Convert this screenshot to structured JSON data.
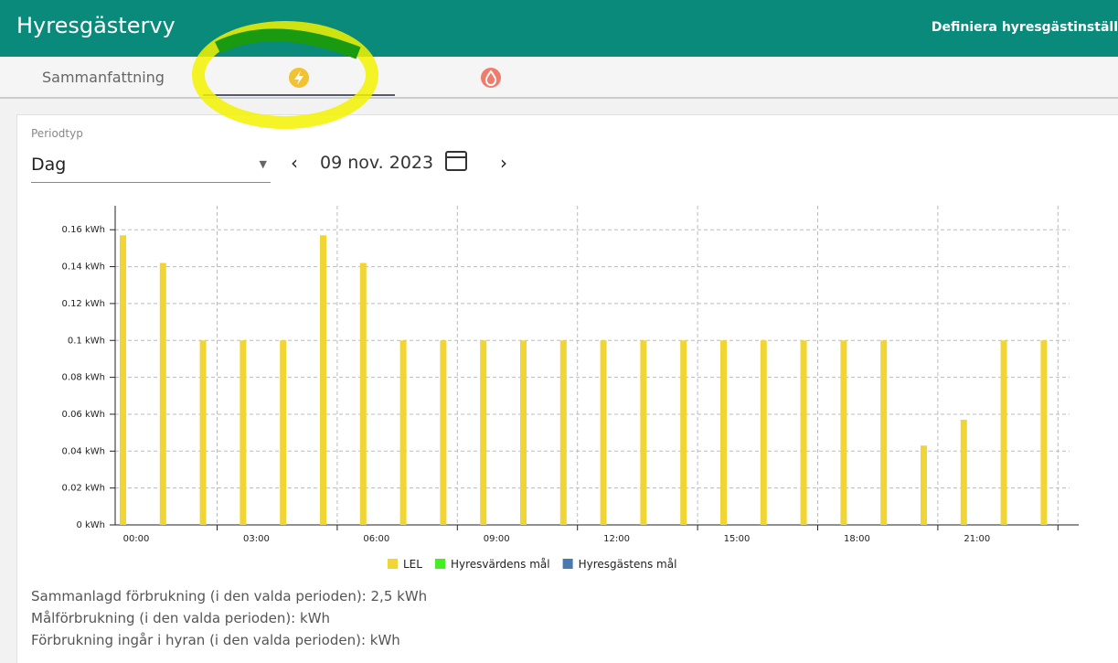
{
  "header": {
    "title": "Hyresgästervy",
    "action": "Definiera hyresgästinställ"
  },
  "tabs": {
    "summary": "Sammanfattning"
  },
  "period": {
    "label": "Periodtyp",
    "type": "Dag",
    "date": "09 nov. 2023"
  },
  "chart_data": {
    "type": "bar",
    "categories": [
      "00:00",
      null,
      null,
      "03:00",
      null,
      null,
      "06:00",
      null,
      null,
      "09:00",
      null,
      null,
      "12:00",
      null,
      null,
      "15:00",
      null,
      null,
      "18:00",
      null,
      null,
      "21:00",
      null,
      null
    ],
    "series": [
      {
        "name": "LEL",
        "color": "#f0d534",
        "values": [
          0.157,
          0.142,
          0.1,
          0.1,
          0.1,
          0.157,
          0.142,
          0.1,
          0.1,
          0.1,
          0.1,
          0.1,
          0.1,
          0.1,
          0.1,
          0.1,
          0.1,
          0.1,
          0.1,
          0.1,
          0.043,
          0.057,
          0.1,
          0.1
        ]
      },
      {
        "name": "Hyresvärdens mål",
        "color": "#44ee22"
      },
      {
        "name": "Hyresgästens mål",
        "color": "#4a78b0"
      }
    ],
    "ylim": [
      0,
      0.173
    ],
    "yticks": [
      {
        "value": 0,
        "label": "0 kWh"
      },
      {
        "value": 0.02,
        "label": "0.02 kWh"
      },
      {
        "value": 0.04,
        "label": "0.04 kWh"
      },
      {
        "value": 0.06,
        "label": "0.06 kWh"
      },
      {
        "value": 0.08,
        "label": "0.08 kWh"
      },
      {
        "value": 0.1,
        "label": "0.1 kWh"
      },
      {
        "value": 0.12,
        "label": "0.12 kWh"
      },
      {
        "value": 0.14,
        "label": "0.14 kWh"
      },
      {
        "value": 0.16,
        "label": "0.16 kWh"
      }
    ],
    "grid": true
  },
  "summary": [
    "Sammanlagd förbrukning (i den valda perioden): 2,5 kWh",
    "Målförbrukning (i den valda perioden): kWh",
    "Förbrukning ingår i hyran (i den valda perioden): kWh"
  ]
}
